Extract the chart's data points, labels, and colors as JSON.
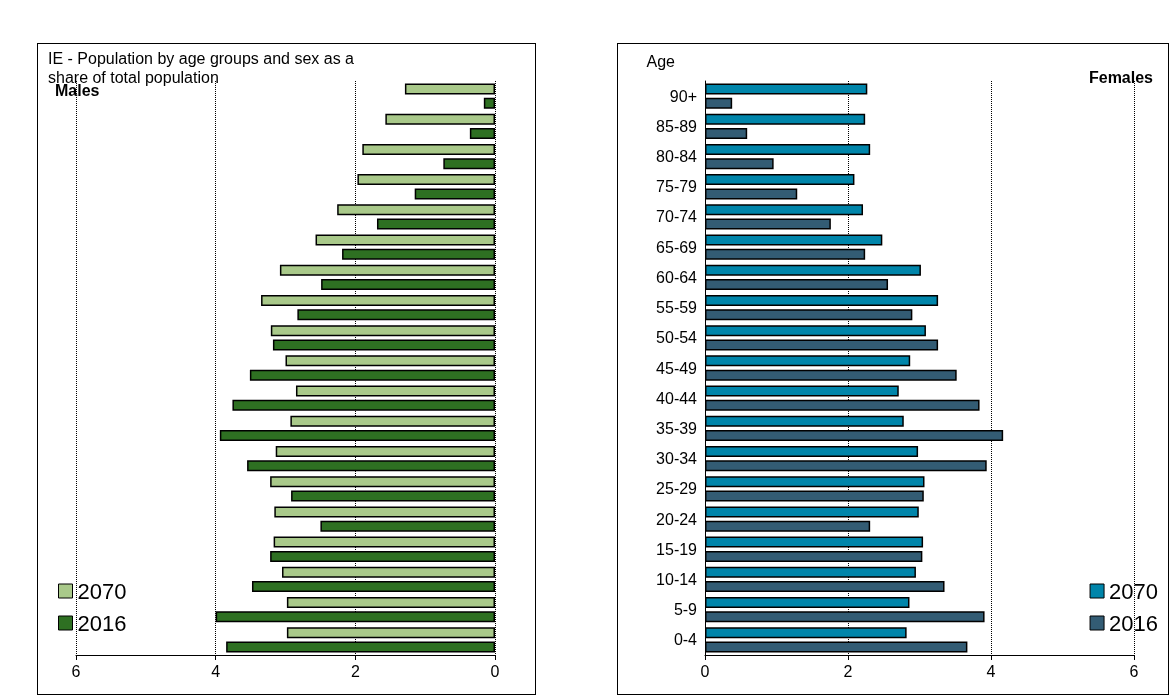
{
  "chart_data": [
    {
      "type": "bar",
      "orientation": "horizontal",
      "title": "IE - Population by age groups and sex as a share of total population",
      "subtitle": "Males",
      "categories": [
        null,
        null,
        null,
        null,
        null,
        null,
        null,
        null,
        null,
        null,
        null,
        null,
        null,
        null,
        null,
        null,
        null,
        null,
        null
      ],
      "series": [
        {
          "name": "2070",
          "color": "#a9c98a",
          "values": [
            1.29,
            1.57,
            1.9,
            1.97,
            2.26,
            2.57,
            3.08,
            3.35,
            3.21,
            3.0,
            2.85,
            2.93,
            3.14,
            3.22,
            3.16,
            3.17,
            3.05,
            2.98,
            2.98
          ]
        },
        {
          "name": "2016",
          "color": "#2e7022",
          "values": [
            0.16,
            0.36,
            0.74,
            1.15,
            1.69,
            2.19,
            2.49,
            2.83,
            3.18,
            3.51,
            3.76,
            3.94,
            3.55,
            2.92,
            2.5,
            3.22,
            3.48,
            4.0,
            3.85
          ]
        }
      ],
      "xlim": [
        6,
        0
      ],
      "xticks": [
        6,
        4,
        2,
        0
      ],
      "grid": "x",
      "legend": "bottom left"
    },
    {
      "type": "bar",
      "orientation": "horizontal",
      "ylabel": "Age",
      "subtitle": "Females",
      "categories": [
        "90+",
        "85-89",
        "80-84",
        "75-79",
        "70-74",
        "65-69",
        "60-64",
        "55-59",
        "50-54",
        "45-49",
        "40-44",
        "35-39",
        "30-34",
        "25-29",
        "20-24",
        "15-19",
        "10-14",
        "5-9",
        "0-4"
      ],
      "series": [
        {
          "name": "2070",
          "color": "#0085aa",
          "values": [
            2.27,
            2.24,
            2.31,
            2.09,
            2.21,
            2.48,
            3.02,
            3.26,
            3.09,
            2.87,
            2.71,
            2.78,
            2.98,
            3.07,
            2.99,
            3.05,
            2.95,
            2.86,
            2.82
          ]
        },
        {
          "name": "2016",
          "color": "#335c74",
          "values": [
            0.38,
            0.59,
            0.96,
            1.29,
            1.76,
            2.24,
            2.56,
            2.9,
            3.26,
            3.52,
            3.84,
            4.17,
            3.94,
            3.06,
            2.31,
            3.04,
            3.35,
            3.91,
            3.67
          ]
        }
      ],
      "xlim": [
        0,
        6
      ],
      "xticks": [
        0,
        2,
        4,
        6
      ],
      "grid": "x",
      "legend": "bottom right"
    }
  ]
}
